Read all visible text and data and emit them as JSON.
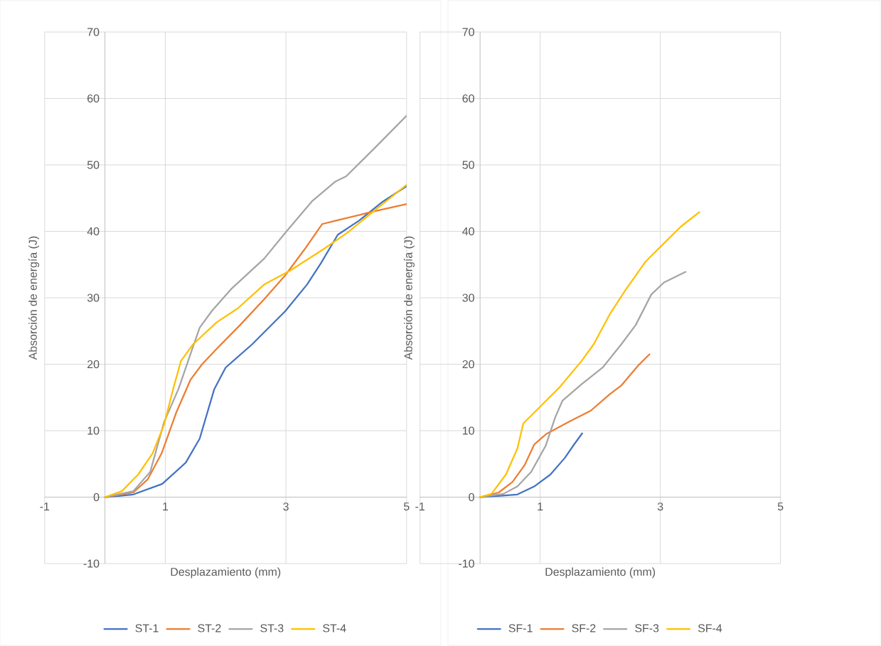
{
  "chart_data": [
    {
      "type": "line",
      "xlabel": "Desplazamiento (mm)",
      "ylabel": "Absorción de energía (J)",
      "xlim": [
        -1,
        5
      ],
      "ylim": [
        -10,
        70
      ],
      "xticks": [
        -1,
        1,
        3,
        5
      ],
      "yticks": [
        -10,
        0,
        10,
        20,
        30,
        40,
        50,
        60,
        70
      ],
      "grid": true,
      "legend": "bottom",
      "series": [
        {
          "name": "ST-1",
          "color": "#4472c4",
          "x": [
            0,
            0.47,
            0.95,
            1.34,
            1.57,
            1.81,
            2.0,
            2.44,
            2.99,
            3.35,
            3.58,
            3.86,
            4.21,
            4.61,
            5.0
          ],
          "values": [
            0,
            0.4,
            2.0,
            5.2,
            8.8,
            16.2,
            19.5,
            23,
            28,
            32,
            35.2,
            39.5,
            41.6,
            44.5,
            46.8
          ]
        },
        {
          "name": "ST-2",
          "color": "#ed7d31",
          "x": [
            0,
            0.47,
            0.71,
            0.94,
            1.18,
            1.42,
            1.61,
            1.85,
            2.24,
            2.64,
            2.99,
            3.31,
            3.6,
            3.82,
            4.41,
            5.0
          ],
          "values": [
            0,
            0.7,
            2.7,
            6.6,
            12.7,
            17.7,
            20,
            22.3,
            25.9,
            29.8,
            33.4,
            37.3,
            41.1,
            41.6,
            42.9,
            44.1
          ]
        },
        {
          "name": "ST-3",
          "color": "#a5a5a5",
          "x": [
            0,
            0.47,
            0.75,
            0.98,
            1.22,
            1.42,
            1.57,
            1.77,
            2.09,
            2.64,
            2.99,
            3.43,
            3.82,
            4.0,
            4.5,
            5.0
          ],
          "values": [
            0,
            0.9,
            3.8,
            11.3,
            16.3,
            21.6,
            25.5,
            28,
            31.3,
            35.9,
            39.8,
            44.5,
            47.5,
            48.3,
            52.8,
            57.4
          ]
        },
        {
          "name": "ST-4",
          "color": "#ffc000",
          "x": [
            0,
            0.28,
            0.55,
            0.79,
            0.98,
            1.14,
            1.26,
            1.46,
            1.85,
            2.2,
            2.64,
            3.07,
            3.62,
            4.02,
            4.41,
            5.0
          ],
          "values": [
            0,
            0.9,
            3.4,
            6.6,
            10.9,
            16.6,
            20.5,
            23,
            26.3,
            28.4,
            32,
            34.1,
            37.3,
            39.8,
            42.7,
            47
          ]
        }
      ]
    },
    {
      "type": "line",
      "xlabel": "Desplazamiento (mm)",
      "ylabel": "Absorción de energía (J)",
      "xlim": [
        -1,
        5
      ],
      "ylim": [
        -10,
        70
      ],
      "xticks": [
        -1,
        1,
        3,
        5
      ],
      "yticks": [
        -10,
        0,
        10,
        20,
        30,
        40,
        50,
        60,
        70
      ],
      "grid": true,
      "legend": "bottom",
      "series": [
        {
          "name": "SF-1",
          "color": "#4472c4",
          "x": [
            0,
            0.62,
            0.9,
            1.17,
            1.41,
            1.57,
            1.7
          ],
          "values": [
            0,
            0.4,
            1.6,
            3.4,
            5.9,
            8,
            9.6
          ]
        },
        {
          "name": "SF-2",
          "color": "#ed7d31",
          "x": [
            0,
            0.31,
            0.54,
            0.74,
            0.9,
            1.1,
            1.49,
            1.84,
            2.16,
            2.35,
            2.63,
            2.82
          ],
          "values": [
            0,
            0.7,
            2.3,
            4.8,
            7.9,
            9.5,
            11.4,
            13,
            15.5,
            16.8,
            19.8,
            21.5
          ]
        },
        {
          "name": "SF-3",
          "color": "#a5a5a5",
          "x": [
            0,
            0.39,
            0.62,
            0.85,
            1.09,
            1.25,
            1.37,
            1.69,
            2.04,
            2.35,
            2.59,
            2.85,
            3.06,
            3.42
          ],
          "values": [
            0,
            0.5,
            1.6,
            3.8,
            7.7,
            12,
            14.5,
            17,
            19.5,
            23,
            25.9,
            30.5,
            32.3,
            33.9
          ]
        },
        {
          "name": "SF-4",
          "color": "#ffc000",
          "x": [
            0,
            0.19,
            0.43,
            0.62,
            0.72,
            1.02,
            1.33,
            1.69,
            1.89,
            2.17,
            2.43,
            2.75,
            3.06,
            3.34,
            3.65
          ],
          "values": [
            0,
            0.5,
            3.4,
            7.3,
            11.1,
            13.8,
            16.6,
            20.5,
            23,
            27.7,
            31.3,
            35.4,
            38.2,
            40.7,
            42.9
          ]
        }
      ]
    }
  ]
}
